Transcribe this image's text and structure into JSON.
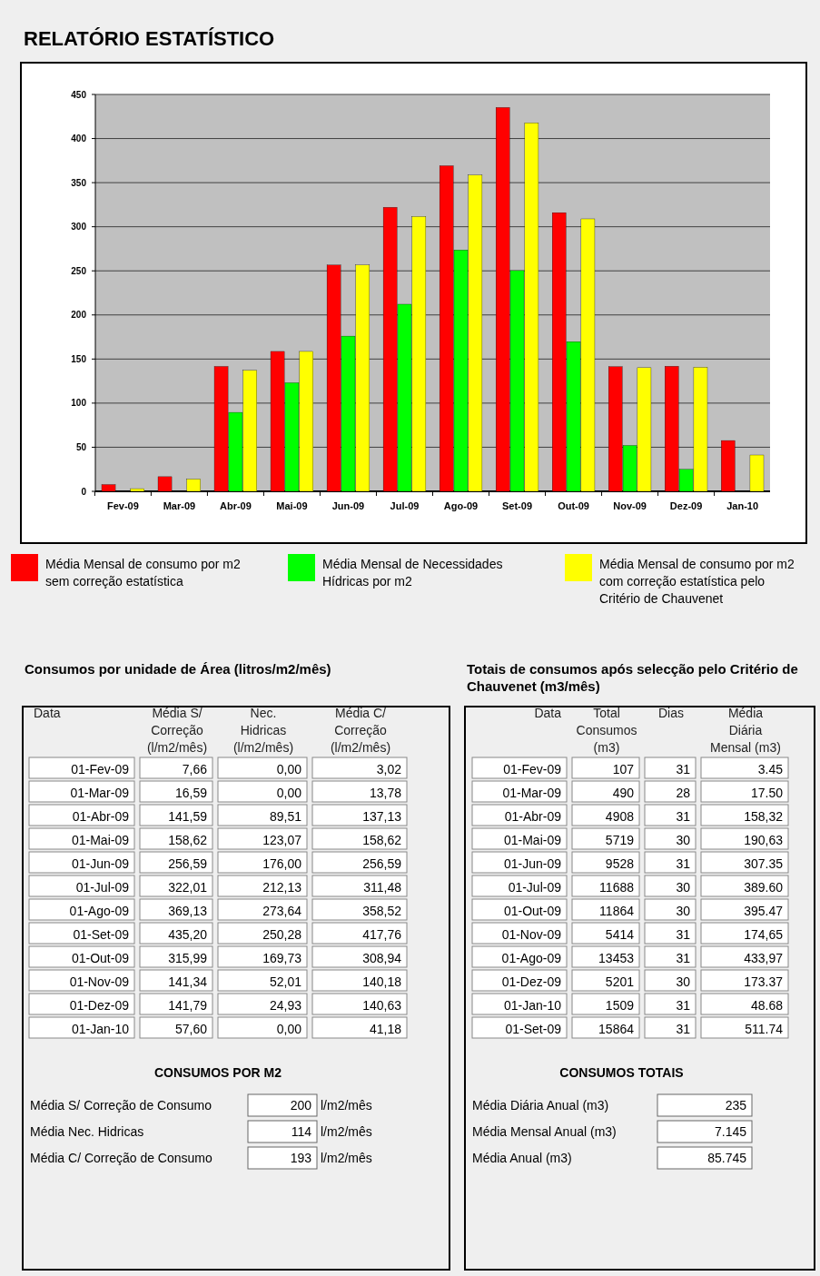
{
  "chart_data": [
    {
      "type": "bar",
      "title": "RELATÓRIO ESTATÍSTICO",
      "categories": [
        "Fev-09",
        "Mar-09",
        "Abr-09",
        "Mai-09",
        "Jun-09",
        "Jul-09",
        "Ago-09",
        "Set-09",
        "Out-09",
        "Nov-09",
        "Dez-09",
        "Jan-10"
      ],
      "series": [
        {
          "name": "Média Mensal de consumo por m2 sem correção estatística",
          "color": "#ff0000",
          "values": [
            7.66,
            16.59,
            141.59,
            158.62,
            256.59,
            322.01,
            369.13,
            435.2,
            315.99,
            141.34,
            141.79,
            57.6
          ]
        },
        {
          "name": "Média Mensal de Necessidades Hídricas por m2",
          "color": "#00ff00",
          "values": [
            0,
            0,
            89.51,
            123.07,
            176.0,
            212.13,
            273.64,
            250.28,
            169.73,
            52.01,
            24.93,
            0
          ]
        },
        {
          "name": "Média Mensal de consumo por m2 com correção estatística pelo Critério de Chauvenet",
          "color": "#ffff00",
          "values": [
            3.02,
            13.78,
            137.13,
            158.62,
            256.59,
            311.48,
            358.52,
            417.76,
            308.94,
            140.18,
            140.63,
            41.18
          ]
        }
      ],
      "ylim": [
        0,
        450
      ],
      "yticks": [
        0,
        50,
        100,
        150,
        200,
        250,
        300,
        350,
        400,
        450
      ],
      "grid": "y",
      "legend": "bottom"
    },
    {
      "type": "other",
      "title": "Consumos por unidade de Área (litros/m2/mês)",
      "ylabel": "Data",
      "categories": [
        "Média S/ Correção (l/m2/mês)",
        "Nec. Hidricas (l/m2/mês)",
        "Média C/ Correção (l/m2/mês)"
      ],
      "y_categories": [
        "01-Fev-09",
        "01-Mar-09",
        "01-Abr-09",
        "01-Mai-09",
        "01-Jun-09",
        "01-Jul-09",
        "01-Ago-09",
        "01-Set-09",
        "01-Out-09",
        "01-Nov-09",
        "01-Dez-09",
        "01-Jan-10"
      ],
      "cell_labels": [
        [
          "7,66",
          "0,00",
          "3,02"
        ],
        [
          "16,59",
          "0,00",
          "13,78"
        ],
        [
          "141,59",
          "89,51",
          "137,13"
        ],
        [
          "158,62",
          "123,07",
          "158,62"
        ],
        [
          "256,59",
          "176,00",
          "256,59"
        ],
        [
          "322,01",
          "212,13",
          "311,48"
        ],
        [
          "369,13",
          "273,64",
          "358,52"
        ],
        [
          "435,20",
          "250,28",
          "417,76"
        ],
        [
          "315,99",
          "169,73",
          "308,94"
        ],
        [
          "141,34",
          "52,01",
          "140,18"
        ],
        [
          "141,79",
          "24,93",
          "140,63"
        ],
        [
          "57,60",
          "0,00",
          "41,18"
        ]
      ],
      "annotations": [
        "CONSUMOS POR M2",
        "Média S/ Correção de Consumo",
        "200",
        "l/m2/mês",
        "Média Nec. Hidricas",
        "114",
        "l/m2/mês",
        "Média C/ Correção de Consumo",
        "193",
        "l/m2/mês"
      ]
    },
    {
      "type": "other",
      "title": "Totais de consumos após selecção pelo Critério de Chauvenet (m3/mês)",
      "ylabel": "Data",
      "categories": [
        "Total Consumos (m3)",
        "Dias",
        "Média Diária Mensal (m3)"
      ],
      "y_categories": [
        "01-Fev-09",
        "01-Mar-09",
        "01-Abr-09",
        "01-Mai-09",
        "01-Jun-09",
        "01-Jul-09",
        "01-Out-09",
        "01-Nov-09",
        "01-Ago-09",
        "01-Dez-09",
        "01-Jan-10",
        "01-Set-09"
      ],
      "cell_labels": [
        [
          "107",
          "31",
          "3.45"
        ],
        [
          "490",
          "28",
          "17.50"
        ],
        [
          "4908",
          "31",
          "158,32"
        ],
        [
          "5719",
          "30",
          "190,63"
        ],
        [
          "9528",
          "31",
          "307.35"
        ],
        [
          "11688",
          "30",
          "389.60"
        ],
        [
          "11864",
          "30",
          "395.47"
        ],
        [
          "5414",
          "31",
          "174,65"
        ],
        [
          "13453",
          "31",
          "433,97"
        ],
        [
          "5201",
          "30",
          "173.37"
        ],
        [
          "1509",
          "31",
          "48.68"
        ],
        [
          "15864",
          "31",
          "511.74"
        ]
      ],
      "annotations": [
        "CONSUMOS TOTAIS",
        "Média Diária Anual (m3)",
        "235",
        "Média Mensal Anual (m3)",
        "7.145",
        "Média Anual (m3)",
        "85.745"
      ]
    }
  ]
}
